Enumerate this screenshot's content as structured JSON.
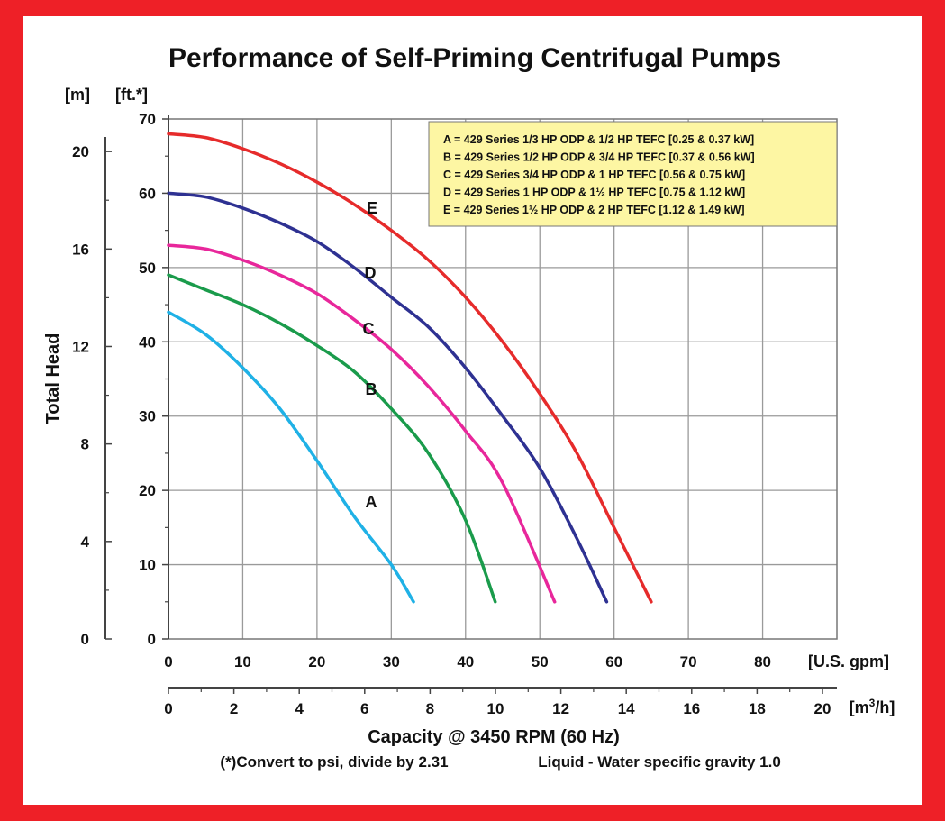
{
  "chart_data": {
    "type": "line",
    "title": "Performance of Self-Priming Centrifugal Pumps",
    "ylabel": "Total Head",
    "y_unit_ft": "[ft.*]",
    "y_unit_m": "[m]",
    "x_unit_gpm": "[U.S. gpm]",
    "x_unit_m3h_base": "[m",
    "x_unit_m3h_sup": "3",
    "x_unit_m3h_tail": "/h]",
    "xlabel": "Capacity @ 3450 RPM (60 Hz)",
    "note_left": "(*)Convert to psi, divide by 2.31",
    "note_right": "Liquid - Water specific gravity 1.0",
    "xlim": [
      0,
      90
    ],
    "ylim": [
      0,
      70
    ],
    "x_ticks_gpm": [
      "0",
      "10",
      "20",
      "30",
      "40",
      "50",
      "60",
      "70",
      "80"
    ],
    "x_ticks_m3h": [
      "0",
      "2",
      "4",
      "6",
      "8",
      "10",
      "12",
      "14",
      "16",
      "18",
      "20"
    ],
    "y_ticks_ft": [
      "0",
      "10",
      "20",
      "30",
      "40",
      "50",
      "60",
      "70"
    ],
    "y_ticks_m": [
      "0",
      "4",
      "8",
      "12",
      "16",
      "20"
    ],
    "grid": true,
    "legend_position": "top-right",
    "legend": [
      "A = 429 Series 1/3 HP ODP & 1/2 HP TEFC [0.25 & 0.37 kW]",
      "B = 429 Series 1/2 HP ODP & 3/4 HP TEFC [0.37 & 0.56 kW]",
      "C = 429 Series 3/4 HP ODP & 1 HP TEFC [0.56 & 0.75 kW]",
      "D = 429 Series 1 HP ODP & 1½ HP TEFC [0.75 & 1.12 kW]",
      "E = 429 Series 1½ HP ODP & 2 HP TEFC [1.12 & 1.49 kW]"
    ],
    "series": [
      {
        "name": "A",
        "color": "#1fb1e6",
        "x": [
          0,
          5,
          10,
          15,
          20,
          25,
          30,
          33
        ],
        "y": [
          44,
          41,
          36.5,
          31,
          24,
          16.5,
          10,
          5
        ]
      },
      {
        "name": "B",
        "color": "#1a9b4b",
        "x": [
          0,
          5,
          10,
          15,
          20,
          25,
          30,
          35,
          40,
          44
        ],
        "y": [
          49,
          47,
          45,
          42.5,
          39.5,
          36,
          31,
          25,
          16,
          5
        ]
      },
      {
        "name": "C",
        "color": "#e8279b",
        "x": [
          0,
          5,
          10,
          15,
          20,
          25,
          30,
          35,
          40,
          45,
          52
        ],
        "y": [
          53,
          52.5,
          51,
          49,
          46.5,
          43,
          39,
          34,
          28,
          21,
          5
        ]
      },
      {
        "name": "D",
        "color": "#2e3192",
        "x": [
          0,
          5,
          10,
          15,
          20,
          25,
          30,
          35,
          40,
          45,
          50,
          55,
          59
        ],
        "y": [
          60,
          59.5,
          58,
          56,
          53.5,
          50,
          46,
          42,
          36.5,
          30,
          23,
          13.5,
          5
        ]
      },
      {
        "name": "E",
        "color": "#e62b2b",
        "x": [
          0,
          5,
          10,
          15,
          20,
          25,
          30,
          35,
          40,
          45,
          50,
          55,
          60,
          65
        ],
        "y": [
          68,
          67.5,
          66,
          64,
          61.5,
          58.5,
          55,
          51,
          46,
          40,
          33,
          25,
          15,
          5
        ]
      }
    ]
  }
}
